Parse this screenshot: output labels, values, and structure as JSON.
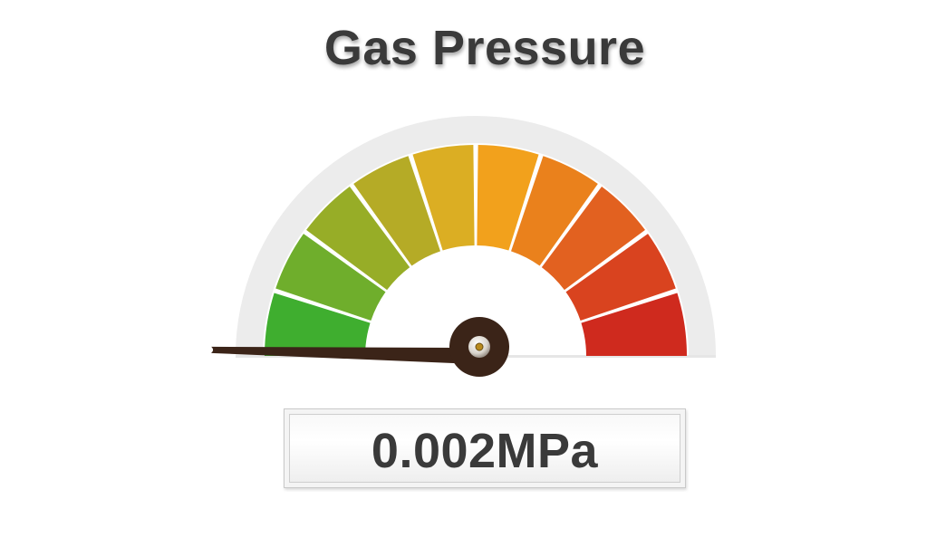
{
  "gauge": {
    "title": "Gas Pressure",
    "readout": "0.002MPa",
    "needle_fraction": 0.02,
    "segment_colors": [
      "#3fae2f",
      "#6fae2c",
      "#97ad27",
      "#b5ab26",
      "#dbae23",
      "#f2a11c",
      "#ea811c",
      "#e26120",
      "#d9431f",
      "#cf2a1e"
    ],
    "track_color": "#ececec",
    "needle_color": "#3b2418"
  }
}
